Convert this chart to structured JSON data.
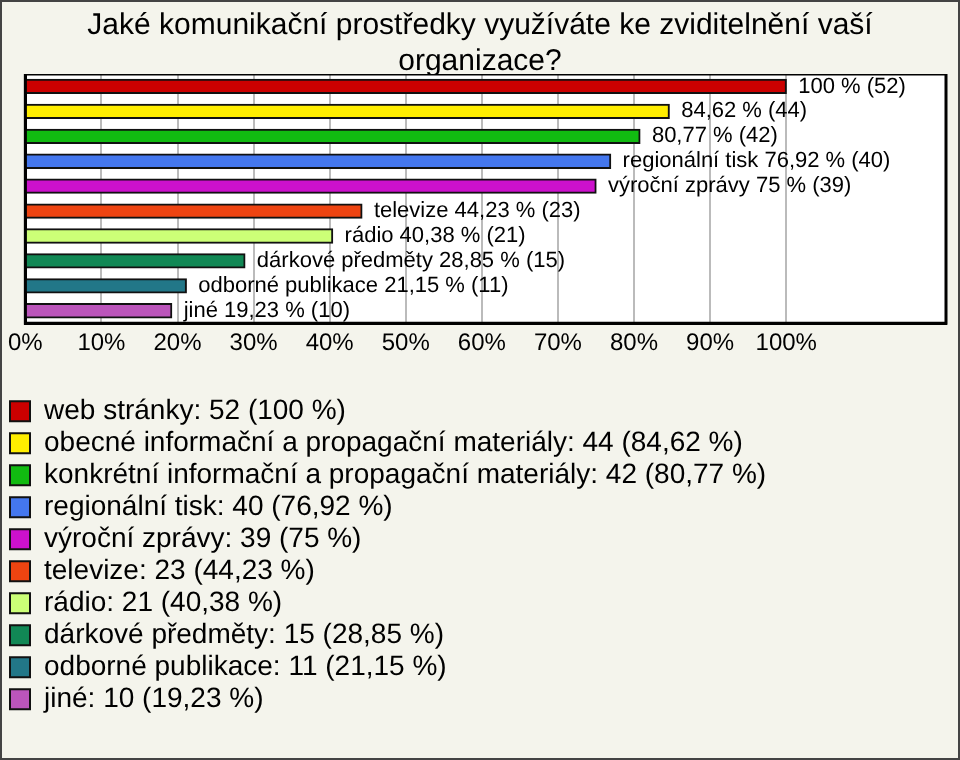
{
  "chart_data": {
    "type": "bar",
    "orientation": "horizontal",
    "title": "Jaké komunikační prostředky využíváte ke zviditelnění vaší organizace?",
    "categories": [
      null,
      null,
      null,
      null,
      null,
      null,
      null,
      null,
      null,
      null
    ],
    "series": [
      {
        "name": "web stránky: 52 (100 %)",
        "color": "#cc0000",
        "values": [
          100,
          null,
          null,
          null,
          null,
          null,
          null,
          null,
          null,
          null
        ],
        "value_labels": [
          "100 % (52)",
          null,
          null,
          null,
          null,
          null,
          null,
          null,
          null,
          null
        ]
      },
      {
        "name": "obecné informační a propagační materiály: 44 (84,62 %)",
        "color": "#ffee00",
        "values": [
          null,
          84.62,
          null,
          null,
          null,
          null,
          null,
          null,
          null,
          null
        ],
        "value_labels": [
          null,
          "84,62 % (44)",
          null,
          null,
          null,
          null,
          null,
          null,
          null,
          null
        ]
      },
      {
        "name": "konkrétní informační a propagační materiály: 42 (80,77 %)",
        "color": "#11bb11",
        "values": [
          null,
          null,
          80.77,
          null,
          null,
          null,
          null,
          null,
          null,
          null
        ],
        "value_labels": [
          null,
          null,
          "80,77 % (42)",
          null,
          null,
          null,
          null,
          null,
          null,
          null
        ]
      },
      {
        "name": "regionální tisk: 40 (76,92 %)",
        "color": "#4477ee",
        "values": [
          null,
          null,
          null,
          76.92,
          null,
          null,
          null,
          null,
          null,
          null
        ],
        "value_labels": [
          null,
          null,
          null,
          "regionální tisk 76,92 % (40)",
          null,
          null,
          null,
          null,
          null,
          null
        ]
      },
      {
        "name": "výroční zprávy: 39 (75 %)",
        "color": "#cc11cc",
        "values": [
          null,
          null,
          null,
          null,
          75,
          null,
          null,
          null,
          null,
          null
        ],
        "value_labels": [
          null,
          null,
          null,
          null,
          "výroční zprávy 75 % (39)",
          null,
          null,
          null,
          null,
          null
        ]
      },
      {
        "name": "televize: 23 (44,23 %)",
        "color": "#ee4411",
        "values": [
          null,
          null,
          null,
          null,
          null,
          44.23,
          null,
          null,
          null,
          null
        ],
        "value_labels": [
          null,
          null,
          null,
          null,
          null,
          "televize 44,23 % (23)",
          null,
          null,
          null,
          null
        ]
      },
      {
        "name": "rádio: 21 (40,38 %)",
        "color": "#ccff77",
        "values": [
          null,
          null,
          null,
          null,
          null,
          null,
          40.38,
          null,
          null,
          null
        ],
        "value_labels": [
          null,
          null,
          null,
          null,
          null,
          null,
          "rádio 40,38 % (21)",
          null,
          null,
          null
        ]
      },
      {
        "name": "dárkové předměty: 15 (28,85 %)",
        "color": "#118855",
        "values": [
          null,
          null,
          null,
          null,
          null,
          null,
          null,
          28.85,
          null,
          null
        ],
        "value_labels": [
          null,
          null,
          null,
          null,
          null,
          null,
          null,
          "dárkové předměty 28,85 % (15)",
          null,
          null
        ]
      },
      {
        "name": "odborné publikace: 11 (21,15 %)",
        "color": "#227788",
        "values": [
          null,
          null,
          null,
          null,
          null,
          null,
          null,
          null,
          21.15,
          null
        ],
        "value_labels": [
          null,
          null,
          null,
          null,
          null,
          null,
          null,
          null,
          "odborné publikace 21,15 % (11)",
          null
        ]
      },
      {
        "name": "jiné: 10 (19,23 %)",
        "color": "#bb55bb",
        "values": [
          null,
          null,
          null,
          null,
          null,
          null,
          null,
          null,
          null,
          19.23
        ],
        "value_labels": [
          null,
          null,
          null,
          null,
          null,
          null,
          null,
          null,
          null,
          "jiné 19,23 % (10)"
        ]
      }
    ],
    "xlim": [
      0,
      121
    ],
    "xticks": [
      {
        "value": 0,
        "label": "0%"
      },
      {
        "value": 10,
        "label": "10%"
      },
      {
        "value": 20,
        "label": "20%"
      },
      {
        "value": 30,
        "label": "30%"
      },
      {
        "value": 40,
        "label": "40%"
      },
      {
        "value": 50,
        "label": "50%"
      },
      {
        "value": 60,
        "label": "60%"
      },
      {
        "value": 70,
        "label": "70%"
      },
      {
        "value": 80,
        "label": "80%"
      },
      {
        "value": 90,
        "label": "90%"
      },
      {
        "value": 100,
        "label": "100%"
      }
    ],
    "grid": "x",
    "legend": "bottom",
    "tick_labels": "x"
  }
}
